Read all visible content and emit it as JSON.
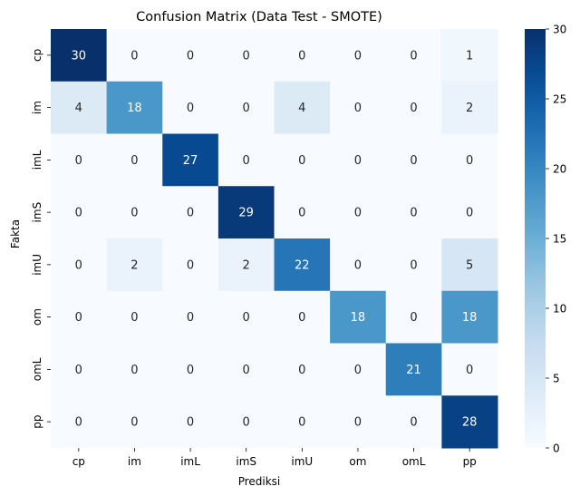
{
  "chart_data": {
    "type": "heatmap",
    "title": "Confusion Matrix (Data Test - SMOTE)",
    "xlabel": "Prediksi",
    "ylabel": "Fakta",
    "x_categories": [
      "cp",
      "im",
      "imL",
      "imS",
      "imU",
      "om",
      "omL",
      "pp"
    ],
    "y_categories": [
      "cp",
      "im",
      "imL",
      "imS",
      "imU",
      "om",
      "omL",
      "pp"
    ],
    "values": [
      [
        30,
        0,
        0,
        0,
        0,
        0,
        0,
        1
      ],
      [
        4,
        18,
        0,
        0,
        4,
        0,
        0,
        2
      ],
      [
        0,
        0,
        27,
        0,
        0,
        0,
        0,
        0
      ],
      [
        0,
        0,
        0,
        29,
        0,
        0,
        0,
        0
      ],
      [
        0,
        2,
        0,
        2,
        22,
        0,
        0,
        5
      ],
      [
        0,
        0,
        0,
        0,
        0,
        18,
        0,
        18
      ],
      [
        0,
        0,
        0,
        0,
        0,
        0,
        21,
        0
      ],
      [
        0,
        0,
        0,
        0,
        0,
        0,
        0,
        28
      ]
    ],
    "vmin": 0,
    "vmax": 30,
    "colormap": "Blues",
    "colorbar_ticks": [
      0,
      5,
      10,
      15,
      20,
      25,
      30
    ],
    "annotations": true,
    "grid": false,
    "colorbar_position": "right"
  }
}
